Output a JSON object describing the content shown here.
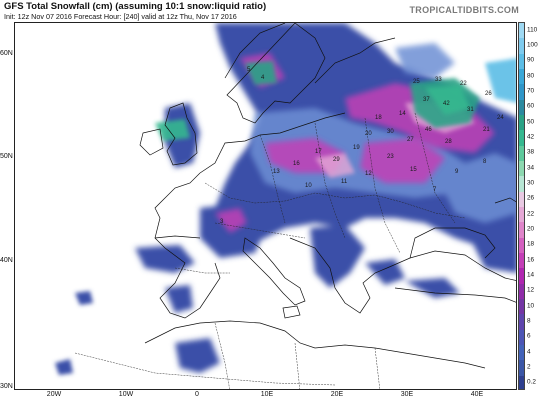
{
  "header": {
    "title": "GFS Total Snowfall (cm) (assuming 10:1 snow:liquid ratio)",
    "subtitle": "Init: 12z Nov 07 2016   Forecast Hour: [240]   valid at 12z Thu, Nov 17 2016",
    "brand": "TROPICALTIDBITS.COM"
  },
  "map": {
    "lat_labels": [
      "60N",
      "50N",
      "40N",
      "30N"
    ],
    "lon_labels": [
      "20W",
      "10W",
      "0",
      "10E",
      "20E",
      "30E",
      "40E"
    ],
    "values": [
      "25",
      "33",
      "22",
      "37",
      "42",
      "31",
      "26",
      "18",
      "14",
      "24",
      "21",
      "46",
      "27",
      "30",
      "20",
      "19",
      "28",
      "17",
      "29",
      "23",
      "16",
      "13",
      "15",
      "12",
      "11",
      "10",
      "9",
      "8",
      "7",
      "5",
      "4",
      "3"
    ]
  },
  "colorbar": {
    "labels": [
      "110",
      "100",
      "90",
      "80",
      "70",
      "60",
      "50",
      "42",
      "38",
      "34",
      "30",
      "26",
      "22",
      "20",
      "18",
      "16",
      "14",
      "12",
      "10",
      "8",
      "6",
      "4",
      "2",
      "0.2"
    ],
    "colors": [
      "#9fd9f3",
      "#7fcbee",
      "#5cbde6",
      "#3aa8d8",
      "#2f96c8",
      "#2c8aa0",
      "#2aa286",
      "#36b88f",
      "#5ec99c",
      "#8dd8b0",
      "#b7e6d4",
      "#e8c9e2",
      "#e5a8d6",
      "#df85ca",
      "#d460c0",
      "#c43fb7",
      "#b026b0",
      "#8f2ca8",
      "#7436a4",
      "#5e45ad",
      "#4c55b5",
      "#4262b9",
      "#3b56a6",
      "#2e3f8f"
    ]
  }
}
